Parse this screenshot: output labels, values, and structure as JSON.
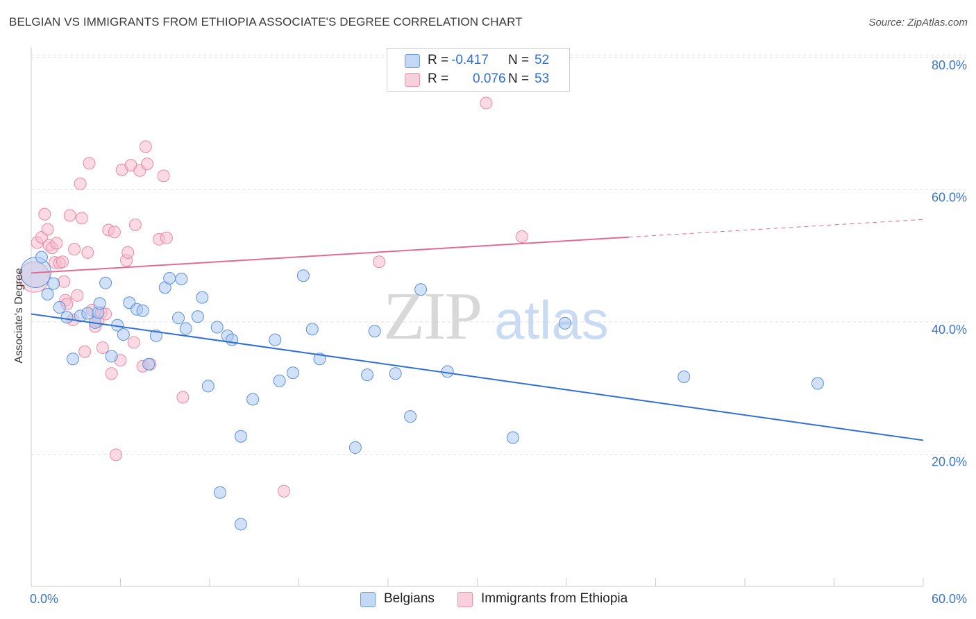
{
  "title": "BELGIAN VS IMMIGRANTS FROM ETHIOPIA ASSOCIATE'S DEGREE CORRELATION CHART",
  "source": "Source: ZipAtlas.com",
  "watermark": {
    "zip": "ZIP",
    "atlas": "atlas"
  },
  "legend": {
    "r_label": "R =",
    "n_label": "N =",
    "series": [
      {
        "r": "-0.417",
        "n": "52"
      },
      {
        "r": "0.076",
        "n": "53"
      }
    ]
  },
  "colors": {
    "blue_fill": "#aac8f2",
    "blue_stroke": "#5d90d8",
    "blue_line": "#2f6fd6",
    "pink_fill": "#f7bccd",
    "pink_stroke": "#e58aa7",
    "pink_line": "#e36a91",
    "axis_text": "#3a74d0",
    "grid": "#dddddd"
  },
  "chart_data": {
    "type": "scatter",
    "title": "BELGIAN VS IMMIGRANTS FROM ETHIOPIA ASSOCIATE'S DEGREE CORRELATION CHART",
    "xlabel": "",
    "ylabel": "Associate's Degree",
    "xlim": [
      0,
      60
    ],
    "ylim": [
      0,
      82
    ],
    "x_tick_labels": [
      "0.0%",
      "60.0%"
    ],
    "y_tick_labels": [
      "20.0%",
      "40.0%",
      "60.0%",
      "80.0%"
    ],
    "y_ticks": [
      20,
      40,
      60,
      80
    ],
    "x_minor_ticks": [
      0,
      6,
      12,
      18,
      24,
      30,
      36,
      42,
      48,
      54,
      60
    ],
    "grid": true,
    "legend_position": "top-center",
    "series": [
      {
        "name": "Belgians",
        "trend": {
          "x": [
            0,
            60
          ],
          "y": [
            41.2,
            22.1
          ],
          "dashed_from": null
        },
        "points": [
          {
            "x": 0.3,
            "y": 47.5,
            "big": true
          },
          {
            "x": 0.7,
            "y": 49.8
          },
          {
            "x": 1.1,
            "y": 44.2
          },
          {
            "x": 1.5,
            "y": 45.8
          },
          {
            "x": 1.9,
            "y": 42.2
          },
          {
            "x": 2.4,
            "y": 40.7
          },
          {
            "x": 2.8,
            "y": 34.4
          },
          {
            "x": 3.3,
            "y": 40.9
          },
          {
            "x": 3.8,
            "y": 41.3
          },
          {
            "x": 4.3,
            "y": 39.9
          },
          {
            "x": 4.5,
            "y": 41.4
          },
          {
            "x": 4.6,
            "y": 42.8
          },
          {
            "x": 5.0,
            "y": 45.9
          },
          {
            "x": 5.4,
            "y": 34.8
          },
          {
            "x": 5.8,
            "y": 39.5
          },
          {
            "x": 6.2,
            "y": 38.1
          },
          {
            "x": 6.6,
            "y": 42.9
          },
          {
            "x": 7.1,
            "y": 41.9
          },
          {
            "x": 7.5,
            "y": 41.7
          },
          {
            "x": 7.9,
            "y": 33.6
          },
          {
            "x": 8.4,
            "y": 37.9
          },
          {
            "x": 9.0,
            "y": 45.2
          },
          {
            "x": 9.3,
            "y": 46.6
          },
          {
            "x": 9.9,
            "y": 40.6
          },
          {
            "x": 10.1,
            "y": 46.5
          },
          {
            "x": 10.4,
            "y": 39.0
          },
          {
            "x": 11.2,
            "y": 40.8
          },
          {
            "x": 11.5,
            "y": 43.7
          },
          {
            "x": 11.9,
            "y": 30.3
          },
          {
            "x": 12.5,
            "y": 39.2
          },
          {
            "x": 12.7,
            "y": 14.2
          },
          {
            "x": 13.2,
            "y": 37.9
          },
          {
            "x": 13.5,
            "y": 37.3
          },
          {
            "x": 14.1,
            "y": 22.7
          },
          {
            "x": 14.1,
            "y": 9.4
          },
          {
            "x": 14.9,
            "y": 28.3
          },
          {
            "x": 16.4,
            "y": 37.3
          },
          {
            "x": 16.7,
            "y": 31.1
          },
          {
            "x": 17.6,
            "y": 32.3
          },
          {
            "x": 18.3,
            "y": 47.0
          },
          {
            "x": 18.9,
            "y": 38.9
          },
          {
            "x": 19.4,
            "y": 34.4
          },
          {
            "x": 21.8,
            "y": 21.0
          },
          {
            "x": 22.6,
            "y": 32.0
          },
          {
            "x": 23.1,
            "y": 38.6
          },
          {
            "x": 24.5,
            "y": 32.2
          },
          {
            "x": 25.5,
            "y": 25.7
          },
          {
            "x": 26.2,
            "y": 44.9
          },
          {
            "x": 28.0,
            "y": 32.5
          },
          {
            "x": 32.4,
            "y": 22.5
          },
          {
            "x": 35.9,
            "y": 39.8
          },
          {
            "x": 43.9,
            "y": 31.7
          },
          {
            "x": 52.9,
            "y": 30.7
          }
        ]
      },
      {
        "name": "Immigrants from Ethiopia",
        "trend": {
          "x": [
            0,
            60
          ],
          "y": [
            47.4,
            55.5
          ],
          "dashed_from": 40.2
        },
        "points": [
          {
            "x": 0.2,
            "y": 46.8,
            "big": true
          },
          {
            "x": 0.4,
            "y": 52.0
          },
          {
            "x": 0.7,
            "y": 52.8
          },
          {
            "x": 0.9,
            "y": 56.3
          },
          {
            "x": 1.1,
            "y": 54.0
          },
          {
            "x": 1.2,
            "y": 51.6
          },
          {
            "x": 1.4,
            "y": 51.2
          },
          {
            "x": 1.6,
            "y": 49.0
          },
          {
            "x": 1.7,
            "y": 51.9
          },
          {
            "x": 1.9,
            "y": 48.9
          },
          {
            "x": 2.1,
            "y": 49.1
          },
          {
            "x": 2.2,
            "y": 46.1
          },
          {
            "x": 2.3,
            "y": 43.3
          },
          {
            "x": 2.4,
            "y": 42.7
          },
          {
            "x": 2.6,
            "y": 56.1
          },
          {
            "x": 2.8,
            "y": 40.3
          },
          {
            "x": 2.9,
            "y": 51.0
          },
          {
            "x": 3.1,
            "y": 44.0
          },
          {
            "x": 3.3,
            "y": 60.9
          },
          {
            "x": 3.4,
            "y": 55.7
          },
          {
            "x": 3.6,
            "y": 35.5
          },
          {
            "x": 3.8,
            "y": 50.5
          },
          {
            "x": 3.9,
            "y": 64.0
          },
          {
            "x": 4.1,
            "y": 41.8
          },
          {
            "x": 4.3,
            "y": 39.3
          },
          {
            "x": 4.5,
            "y": 40.1
          },
          {
            "x": 4.7,
            "y": 41.4
          },
          {
            "x": 4.8,
            "y": 36.1
          },
          {
            "x": 5.0,
            "y": 41.2
          },
          {
            "x": 5.2,
            "y": 53.9
          },
          {
            "x": 5.4,
            "y": 32.2
          },
          {
            "x": 5.6,
            "y": 53.6
          },
          {
            "x": 5.7,
            "y": 19.9
          },
          {
            "x": 6.0,
            "y": 34.2
          },
          {
            "x": 6.1,
            "y": 63.0
          },
          {
            "x": 6.4,
            "y": 49.3
          },
          {
            "x": 6.5,
            "y": 50.5
          },
          {
            "x": 6.7,
            "y": 63.7
          },
          {
            "x": 6.9,
            "y": 36.9
          },
          {
            "x": 7.0,
            "y": 54.7
          },
          {
            "x": 7.3,
            "y": 62.9
          },
          {
            "x": 7.5,
            "y": 33.3
          },
          {
            "x": 7.7,
            "y": 66.5
          },
          {
            "x": 7.8,
            "y": 63.9
          },
          {
            "x": 8.0,
            "y": 33.6
          },
          {
            "x": 8.6,
            "y": 52.5
          },
          {
            "x": 8.9,
            "y": 62.1
          },
          {
            "x": 9.1,
            "y": 52.7
          },
          {
            "x": 10.2,
            "y": 28.6
          },
          {
            "x": 17.0,
            "y": 14.4
          },
          {
            "x": 23.4,
            "y": 49.1
          },
          {
            "x": 30.6,
            "y": 73.1
          },
          {
            "x": 33.0,
            "y": 52.9
          }
        ]
      }
    ]
  },
  "bottom_legend": [
    "Belgians",
    "Immigrants from Ethiopia"
  ]
}
